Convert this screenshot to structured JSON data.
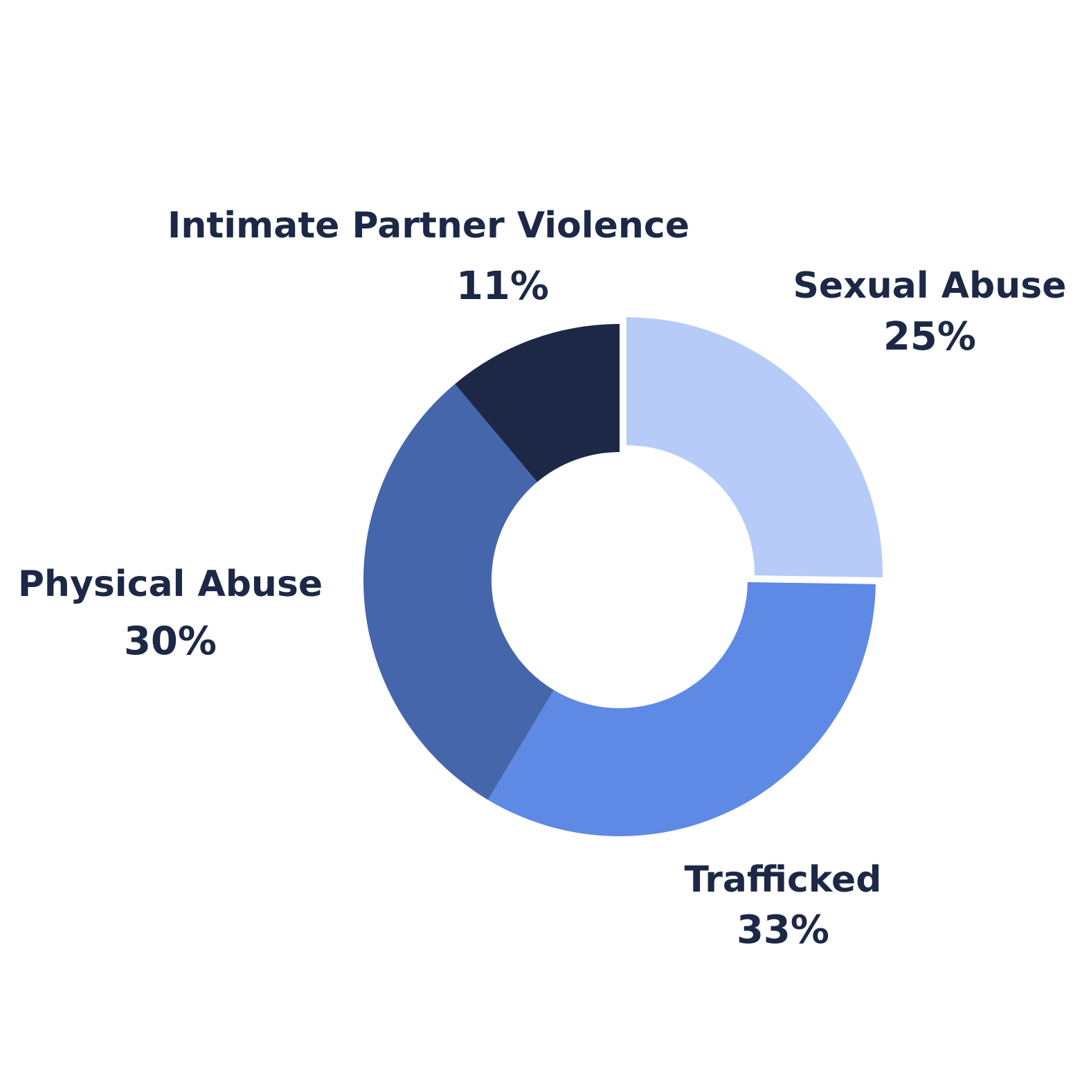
{
  "chart_data": {
    "type": "pie",
    "variant": "donut",
    "start_angle_deg": 0,
    "direction": "clockwise",
    "slices": [
      {
        "label": "Sexual Abuse",
        "value": 25,
        "value_label": "25%",
        "color": "#b6cbf8",
        "exploded": true
      },
      {
        "label": "Trafficked",
        "value": 33,
        "value_label": "33%",
        "color": "#5e89e5",
        "exploded": false
      },
      {
        "label": "Physical Abuse",
        "value": 30,
        "value_label": "30%",
        "color": "#4666ab",
        "exploded": false
      },
      {
        "label": "Intimate Partner Violence",
        "value": 11,
        "value_label": "11%",
        "color": "#1c2846",
        "exploded": false
      }
    ],
    "legend": "none",
    "label_color": "#1c2846"
  }
}
